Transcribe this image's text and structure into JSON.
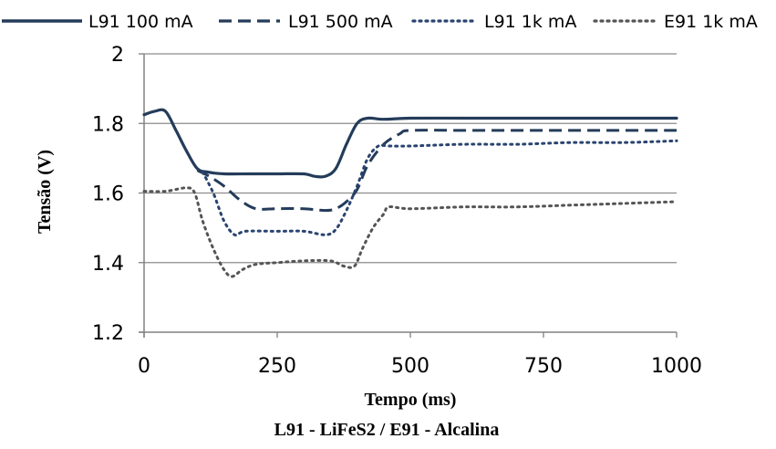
{
  "chart_data": {
    "type": "line",
    "xlabel": "Tempo (ms)",
    "ylabel": "Tensão (V)",
    "subtitle": "L91 - LiFeS2 / E91 - Alcalina",
    "xlim": [
      0,
      1000
    ],
    "ylim": [
      1.2,
      2.0
    ],
    "xticks": [
      "0",
      "250",
      "500",
      "750",
      "1000"
    ],
    "yticks": [
      "1.2",
      "1.4",
      "1.6",
      "1.8",
      "2"
    ],
    "grid": "horizontal",
    "legend_position": "top",
    "series": [
      {
        "name": "L91 100 mA",
        "style": "solid",
        "color": "#243c5a",
        "x": [
          0,
          20,
          40,
          60,
          80,
          100,
          120,
          150,
          200,
          250,
          300,
          320,
          340,
          360,
          380,
          400,
          420,
          450,
          500,
          600,
          700,
          800,
          900,
          1000
        ],
        "y": [
          1.825,
          1.835,
          1.835,
          1.78,
          1.72,
          1.67,
          1.66,
          1.655,
          1.655,
          1.655,
          1.655,
          1.648,
          1.648,
          1.67,
          1.74,
          1.8,
          1.815,
          1.812,
          1.815,
          1.815,
          1.815,
          1.815,
          1.815,
          1.815
        ]
      },
      {
        "name": "L91 500 mA",
        "style": "dashed",
        "color": "#243c5a",
        "x": [
          100,
          120,
          150,
          180,
          210,
          250,
          300,
          340,
          360,
          380,
          400,
          420,
          450,
          480,
          500,
          600,
          700,
          800,
          900,
          1000
        ],
        "y": [
          1.665,
          1.65,
          1.62,
          1.58,
          1.555,
          1.555,
          1.555,
          1.55,
          1.555,
          1.575,
          1.61,
          1.68,
          1.74,
          1.77,
          1.78,
          1.78,
          1.78,
          1.78,
          1.78,
          1.78
        ]
      },
      {
        "name": "L91 1k mA",
        "style": "dotted",
        "color": "#2a4470",
        "x": [
          110,
          130,
          150,
          170,
          190,
          250,
          300,
          340,
          360,
          380,
          400,
          420,
          440,
          460,
          500,
          600,
          700,
          800,
          900,
          1000
        ],
        "y": [
          1.66,
          1.6,
          1.52,
          1.48,
          1.49,
          1.49,
          1.49,
          1.48,
          1.495,
          1.55,
          1.62,
          1.7,
          1.735,
          1.735,
          1.735,
          1.74,
          1.74,
          1.745,
          1.745,
          1.75
        ]
      },
      {
        "name": "E91 1k mA",
        "style": "dotted",
        "color": "#555555",
        "x": [
          0,
          40,
          80,
          95,
          110,
          130,
          150,
          165,
          185,
          210,
          250,
          300,
          350,
          375,
          395,
          410,
          430,
          450,
          460,
          500,
          600,
          700,
          800,
          900,
          1000
        ],
        "y": [
          1.605,
          1.605,
          1.615,
          1.6,
          1.52,
          1.44,
          1.38,
          1.36,
          1.38,
          1.395,
          1.4,
          1.405,
          1.405,
          1.39,
          1.39,
          1.44,
          1.5,
          1.54,
          1.56,
          1.555,
          1.56,
          1.56,
          1.565,
          1.57,
          1.575
        ]
      }
    ]
  }
}
